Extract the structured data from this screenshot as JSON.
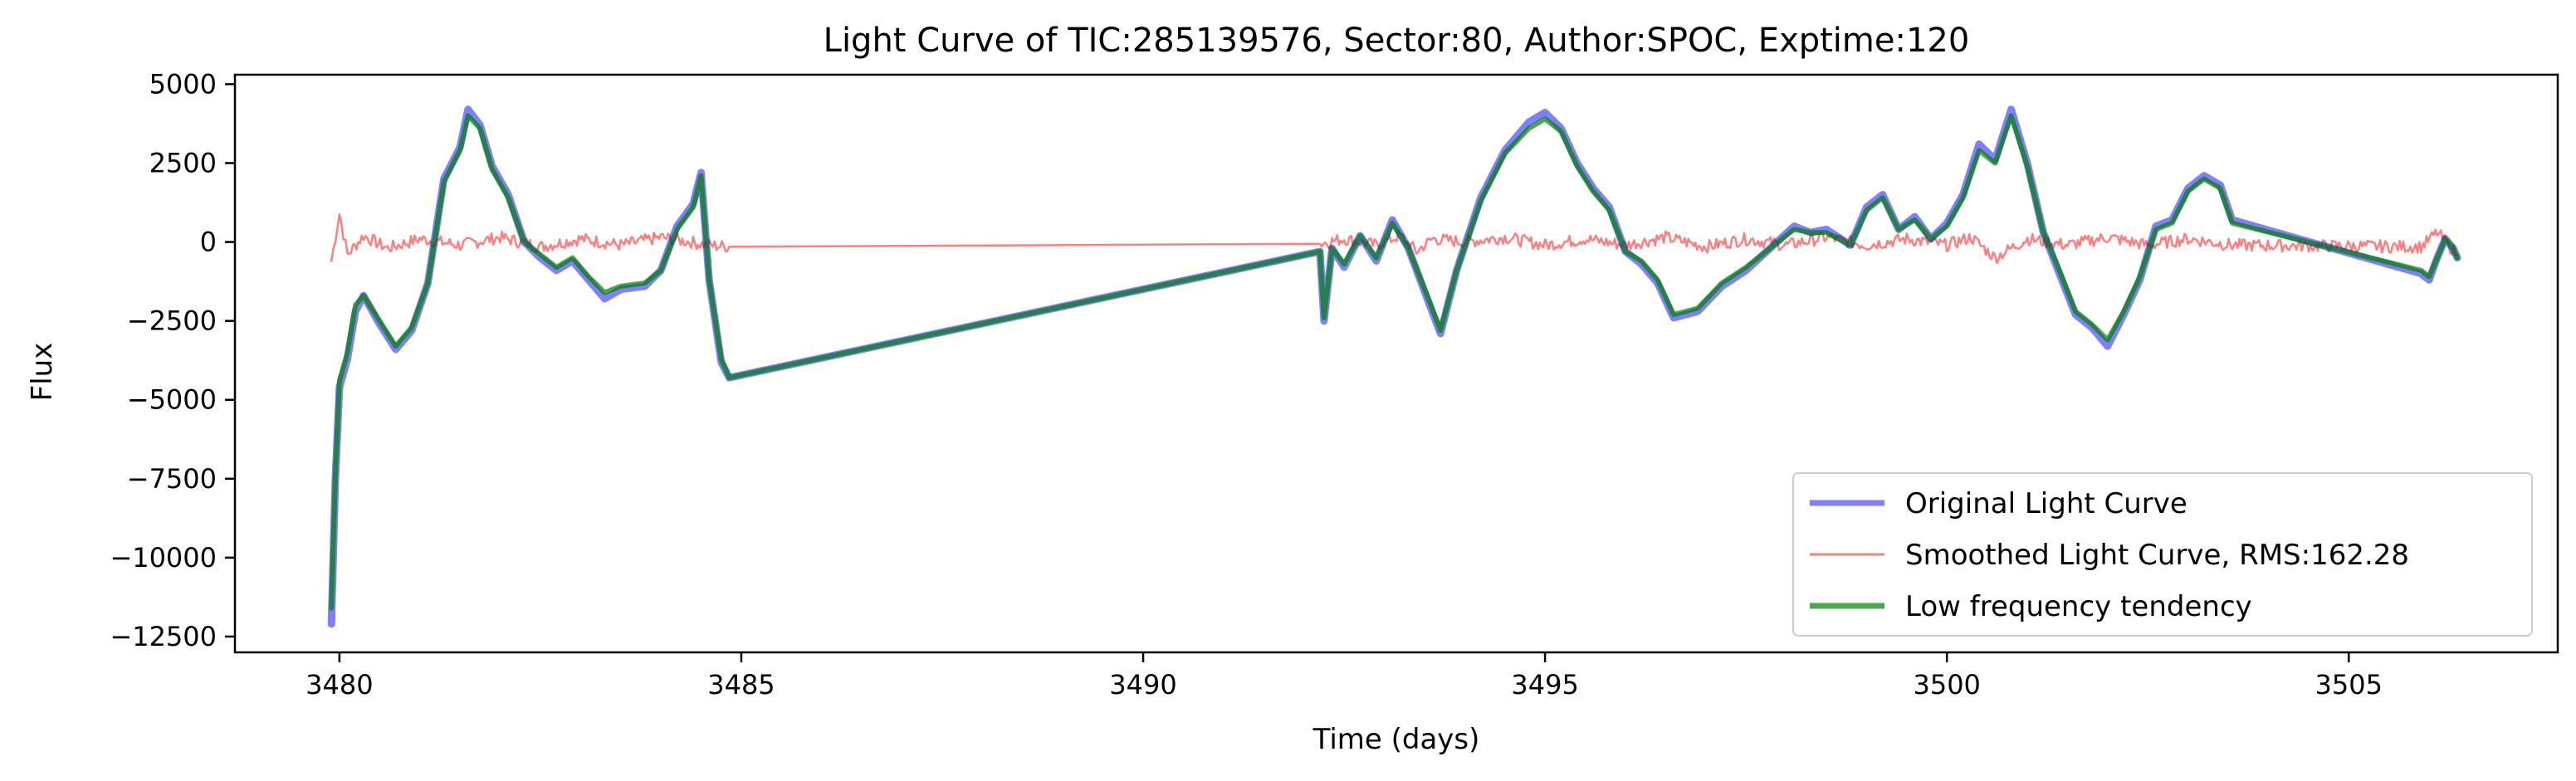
{
  "chart_data": {
    "type": "line",
    "title": "Light Curve of TIC:285139576, Sector:80, Author:SPOC, Exptime:120",
    "xlabel": "Time (days)",
    "ylabel": "Flux",
    "xlim": [
      3478.7,
      3507.6
    ],
    "ylim": [
      -13000,
      5300
    ],
    "xticks": [
      3480,
      3485,
      3490,
      3495,
      3500,
      3505
    ],
    "yticks": [
      5000,
      2500,
      0,
      -2500,
      -5000,
      -7500,
      -10000,
      -12500
    ],
    "xtick_labels": [
      "3480",
      "3485",
      "3490",
      "3495",
      "3500",
      "3505"
    ],
    "ytick_labels": [
      "5000",
      "2500",
      "0",
      "−2500",
      "−5000",
      "−7500",
      "−10000",
      "−12500"
    ],
    "grid": false,
    "legend_position": "lower-right",
    "series": [
      {
        "name": "Original Light Curve",
        "color": "#0000ff",
        "opacity": 0.5,
        "style": "thick",
        "x": [
          3479.9,
          3479.95,
          3480.0,
          3480.1,
          3480.2,
          3480.3,
          3480.5,
          3480.7,
          3480.9,
          3481.1,
          3481.3,
          3481.5,
          3481.6,
          3481.75,
          3481.9,
          3482.1,
          3482.3,
          3482.5,
          3482.7,
          3482.9,
          3483.1,
          3483.3,
          3483.5,
          3483.8,
          3484.0,
          3484.2,
          3484.4,
          3484.5,
          3484.6,
          3484.75,
          3484.85,
          3492.2,
          3492.25,
          3492.35,
          3492.5,
          3492.7,
          3492.9,
          3493.1,
          3493.3,
          3493.55,
          3493.7,
          3493.9,
          3494.2,
          3494.5,
          3494.8,
          3495.0,
          3495.2,
          3495.4,
          3495.6,
          3495.8,
          3496.0,
          3496.2,
          3496.4,
          3496.6,
          3496.9,
          3497.2,
          3497.5,
          3497.8,
          3498.1,
          3498.3,
          3498.5,
          3498.8,
          3499.0,
          3499.2,
          3499.4,
          3499.6,
          3499.8,
          3500.0,
          3500.2,
          3500.4,
          3500.6,
          3500.8,
          3501.0,
          3501.2,
          3501.4,
          3501.6,
          3501.8,
          3502.0,
          3502.2,
          3502.4,
          3502.6,
          3502.8,
          3503.0,
          3503.2,
          3503.4,
          3503.55,
          3505.9,
          3506.0,
          3506.1,
          3506.2,
          3506.3,
          3506.35
        ],
        "y": [
          -12100,
          -7500,
          -4600,
          -3700,
          -2200,
          -1700,
          -2600,
          -3400,
          -2800,
          -1300,
          2000,
          3000,
          4200,
          3700,
          2400,
          1500,
          0,
          -500,
          -900,
          -600,
          -1200,
          -1800,
          -1500,
          -1400,
          -900,
          500,
          1200,
          2200,
          -1200,
          -3800,
          -4300,
          -300,
          -2500,
          -200,
          -800,
          200,
          -600,
          700,
          -200,
          -1900,
          -2900,
          -900,
          1400,
          2900,
          3800,
          4100,
          3600,
          2500,
          1700,
          1100,
          -300,
          -700,
          -1300,
          -2400,
          -2200,
          -1400,
          -900,
          -200,
          500,
          300,
          400,
          -100,
          1100,
          1500,
          400,
          800,
          100,
          600,
          1500,
          3100,
          2600,
          4200,
          2500,
          300,
          -1000,
          -2300,
          -2700,
          -3300,
          -2300,
          -1200,
          500,
          700,
          1700,
          2100,
          1800,
          700,
          -1000,
          -1200,
          -500,
          100,
          -200,
          -500
        ]
      },
      {
        "name": "Smoothed Light Curve, RMS:162.28",
        "color": "#ff0000",
        "opacity": 0.5,
        "style": "thin-noisy",
        "x": [
          3479.9,
          3480.0,
          3480.1,
          3480.3,
          3480.6,
          3481.0,
          3481.5,
          3482.0,
          3482.5,
          3483.0,
          3483.5,
          3484.0,
          3484.6,
          3484.85,
          3492.2,
          3492.5,
          3492.9,
          3493.2,
          3493.4,
          3493.6,
          3494.0,
          3494.5,
          3495.0,
          3495.5,
          3496.0,
          3496.5,
          3497.0,
          3497.5,
          3498.0,
          3498.5,
          3499.0,
          3499.5,
          3500.0,
          3500.3,
          3500.6,
          3501.0,
          3501.5,
          3502.0,
          3502.5,
          3503.0,
          3503.55,
          3505.9,
          3506.1,
          3506.35
        ],
        "y": [
          -600,
          900,
          -400,
          200,
          -200,
          100,
          -100,
          150,
          -150,
          100,
          -100,
          150,
          -100,
          -150,
          -50,
          100,
          -100,
          200,
          -300,
          100,
          0,
          150,
          -100,
          100,
          -100,
          150,
          -150,
          100,
          -100,
          150,
          -100,
          100,
          -100,
          150,
          -500,
          100,
          -100,
          150,
          -100,
          100,
          -100,
          -150,
          300,
          -400
        ],
        "noise_amplitude": 200
      },
      {
        "name": "Low frequency tendency",
        "color": "#008000",
        "opacity": 0.7,
        "style": "thick",
        "x": [
          3479.9,
          3479.95,
          3480.0,
          3480.1,
          3480.2,
          3480.3,
          3480.5,
          3480.7,
          3480.9,
          3481.1,
          3481.3,
          3481.5,
          3481.6,
          3481.75,
          3481.9,
          3482.1,
          3482.3,
          3482.5,
          3482.7,
          3482.9,
          3483.1,
          3483.3,
          3483.5,
          3483.8,
          3484.0,
          3484.2,
          3484.4,
          3484.5,
          3484.6,
          3484.75,
          3484.85,
          3492.2,
          3492.25,
          3492.35,
          3492.5,
          3492.7,
          3492.9,
          3493.1,
          3493.3,
          3493.55,
          3493.7,
          3493.9,
          3494.2,
          3494.5,
          3494.8,
          3495.0,
          3495.2,
          3495.4,
          3495.6,
          3495.8,
          3496.0,
          3496.2,
          3496.4,
          3496.6,
          3496.9,
          3497.2,
          3497.5,
          3497.8,
          3498.1,
          3498.3,
          3498.5,
          3498.8,
          3499.0,
          3499.2,
          3499.4,
          3499.6,
          3499.8,
          3500.0,
          3500.2,
          3500.4,
          3500.6,
          3500.8,
          3501.0,
          3501.2,
          3501.4,
          3501.6,
          3501.8,
          3502.0,
          3502.2,
          3502.4,
          3502.6,
          3502.8,
          3503.0,
          3503.2,
          3503.4,
          3503.55,
          3505.9,
          3506.0,
          3506.1,
          3506.2,
          3506.3,
          3506.35
        ],
        "y": [
          -11600,
          -7300,
          -4400,
          -3500,
          -2000,
          -1700,
          -2500,
          -3300,
          -2700,
          -1300,
          1900,
          2900,
          4000,
          3600,
          2300,
          1400,
          0,
          -400,
          -800,
          -500,
          -1100,
          -1600,
          -1400,
          -1300,
          -900,
          400,
          1100,
          2100,
          -1200,
          -3700,
          -4300,
          -300,
          -2400,
          -200,
          -700,
          200,
          -500,
          600,
          -200,
          -1800,
          -2800,
          -900,
          1300,
          2800,
          3600,
          3900,
          3500,
          2400,
          1600,
          1000,
          -300,
          -600,
          -1200,
          -2300,
          -2100,
          -1300,
          -800,
          -200,
          400,
          300,
          300,
          -100,
          1000,
          1400,
          400,
          700,
          100,
          500,
          1400,
          2900,
          2500,
          4000,
          2400,
          300,
          -900,
          -2200,
          -2600,
          -3100,
          -2200,
          -1100,
          400,
          600,
          1600,
          2000,
          1700,
          600,
          -900,
          -1100,
          -500,
          100,
          -200,
          -500
        ]
      }
    ]
  }
}
